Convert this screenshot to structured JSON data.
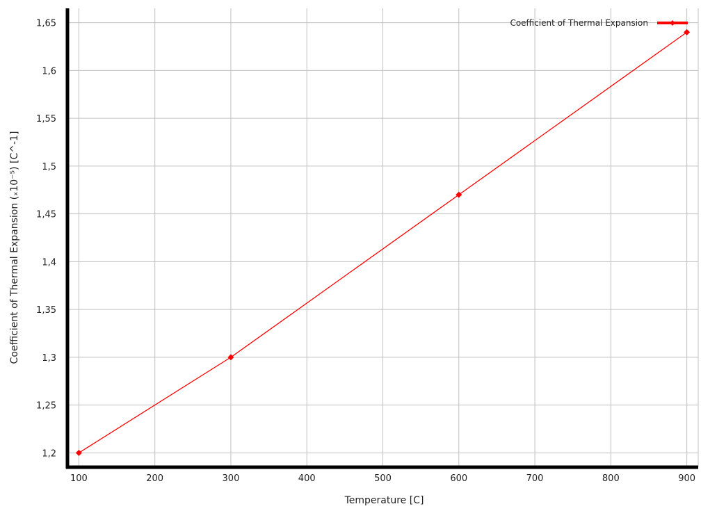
{
  "chart_data": {
    "type": "line",
    "title": "",
    "xlabel": "Temperature  [C]",
    "ylabel": "Coefficient of Thermal Expansion  (ₓ10⁻⁵)  [C^-1]",
    "xlim": [
      85,
      915
    ],
    "ylim": [
      1.185,
      1.665
    ],
    "x_ticks": [
      100,
      200,
      300,
      400,
      500,
      600,
      700,
      800,
      900
    ],
    "y_ticks": [
      1.2,
      1.25,
      1.3,
      1.35,
      1.4,
      1.45,
      1.5,
      1.55,
      1.6,
      1.65
    ],
    "y_tick_labels": [
      "1,2",
      "1,25",
      "1,3",
      "1,35",
      "1,4",
      "1,45",
      "1,5",
      "1,55",
      "1,6",
      "1,65"
    ],
    "x_tick_labels": [
      "100",
      "200",
      "300",
      "400",
      "500",
      "600",
      "700",
      "800",
      "900"
    ],
    "grid": true,
    "legend_position": "top-right",
    "series": [
      {
        "name": "Coefficient of Thermal Expansion",
        "color": "#ff0000",
        "x": [
          100,
          300,
          600,
          900
        ],
        "y": [
          1.2,
          1.3,
          1.47,
          1.64
        ]
      }
    ]
  },
  "colors": {
    "grid": "#c0c0c0",
    "axis": "#000000",
    "series": "#ff0000"
  }
}
